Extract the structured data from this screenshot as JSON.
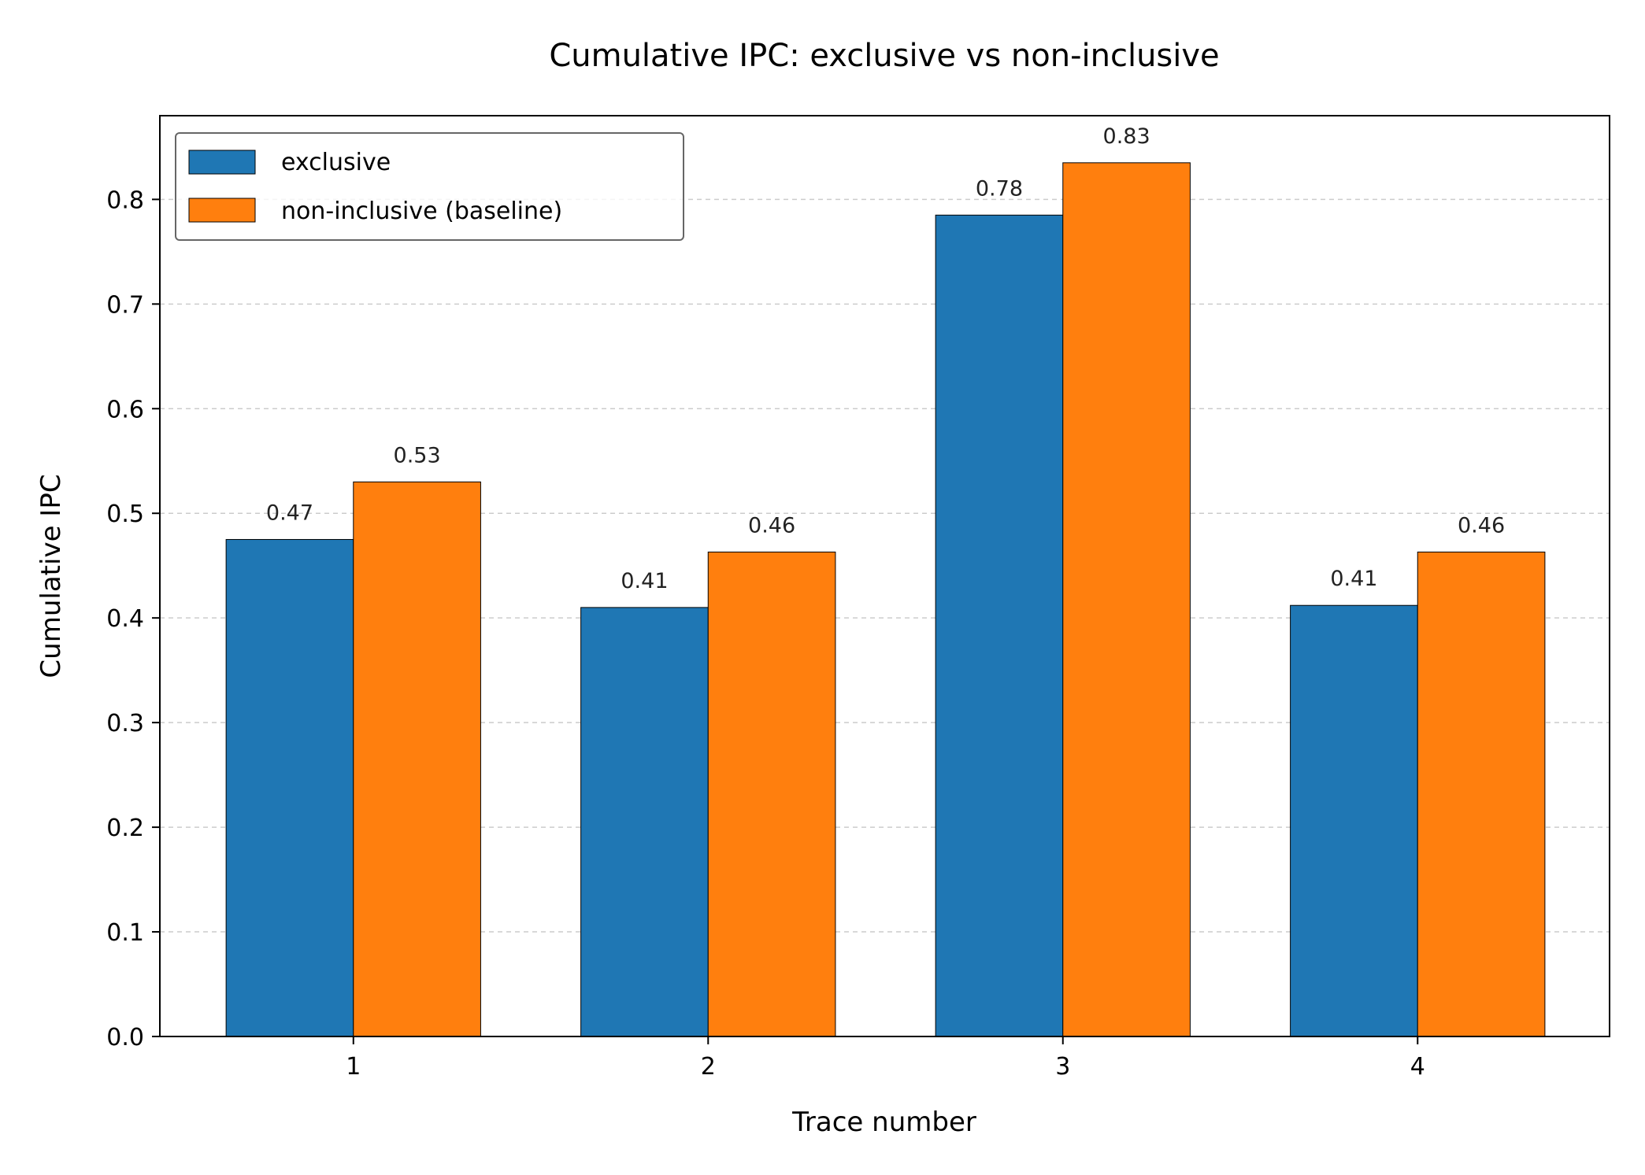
{
  "chart_data": {
    "type": "bar",
    "title": "Cumulative IPC: exclusive vs non-inclusive",
    "xlabel": "Trace number",
    "ylabel": "Cumulative IPC",
    "categories": [
      "1",
      "2",
      "3",
      "4"
    ],
    "series": [
      {
        "name": "exclusive",
        "color": "#1f77b4",
        "values": [
          0.475,
          0.41,
          0.785,
          0.412
        ],
        "labels": [
          "0.47",
          "0.41",
          "0.78",
          "0.41"
        ]
      },
      {
        "name": "non-inclusive (baseline)",
        "color": "#ff7f0e",
        "values": [
          0.53,
          0.463,
          0.835,
          0.463
        ],
        "labels": [
          "0.53",
          "0.46",
          "0.83",
          "0.46"
        ]
      }
    ],
    "ylim": [
      0,
      0.88
    ],
    "yticks": [
      "0.0",
      "0.1",
      "0.2",
      "0.3",
      "0.4",
      "0.5",
      "0.6",
      "0.7",
      "0.8"
    ],
    "grid": "y-dashed",
    "legend_position": "top-left"
  }
}
